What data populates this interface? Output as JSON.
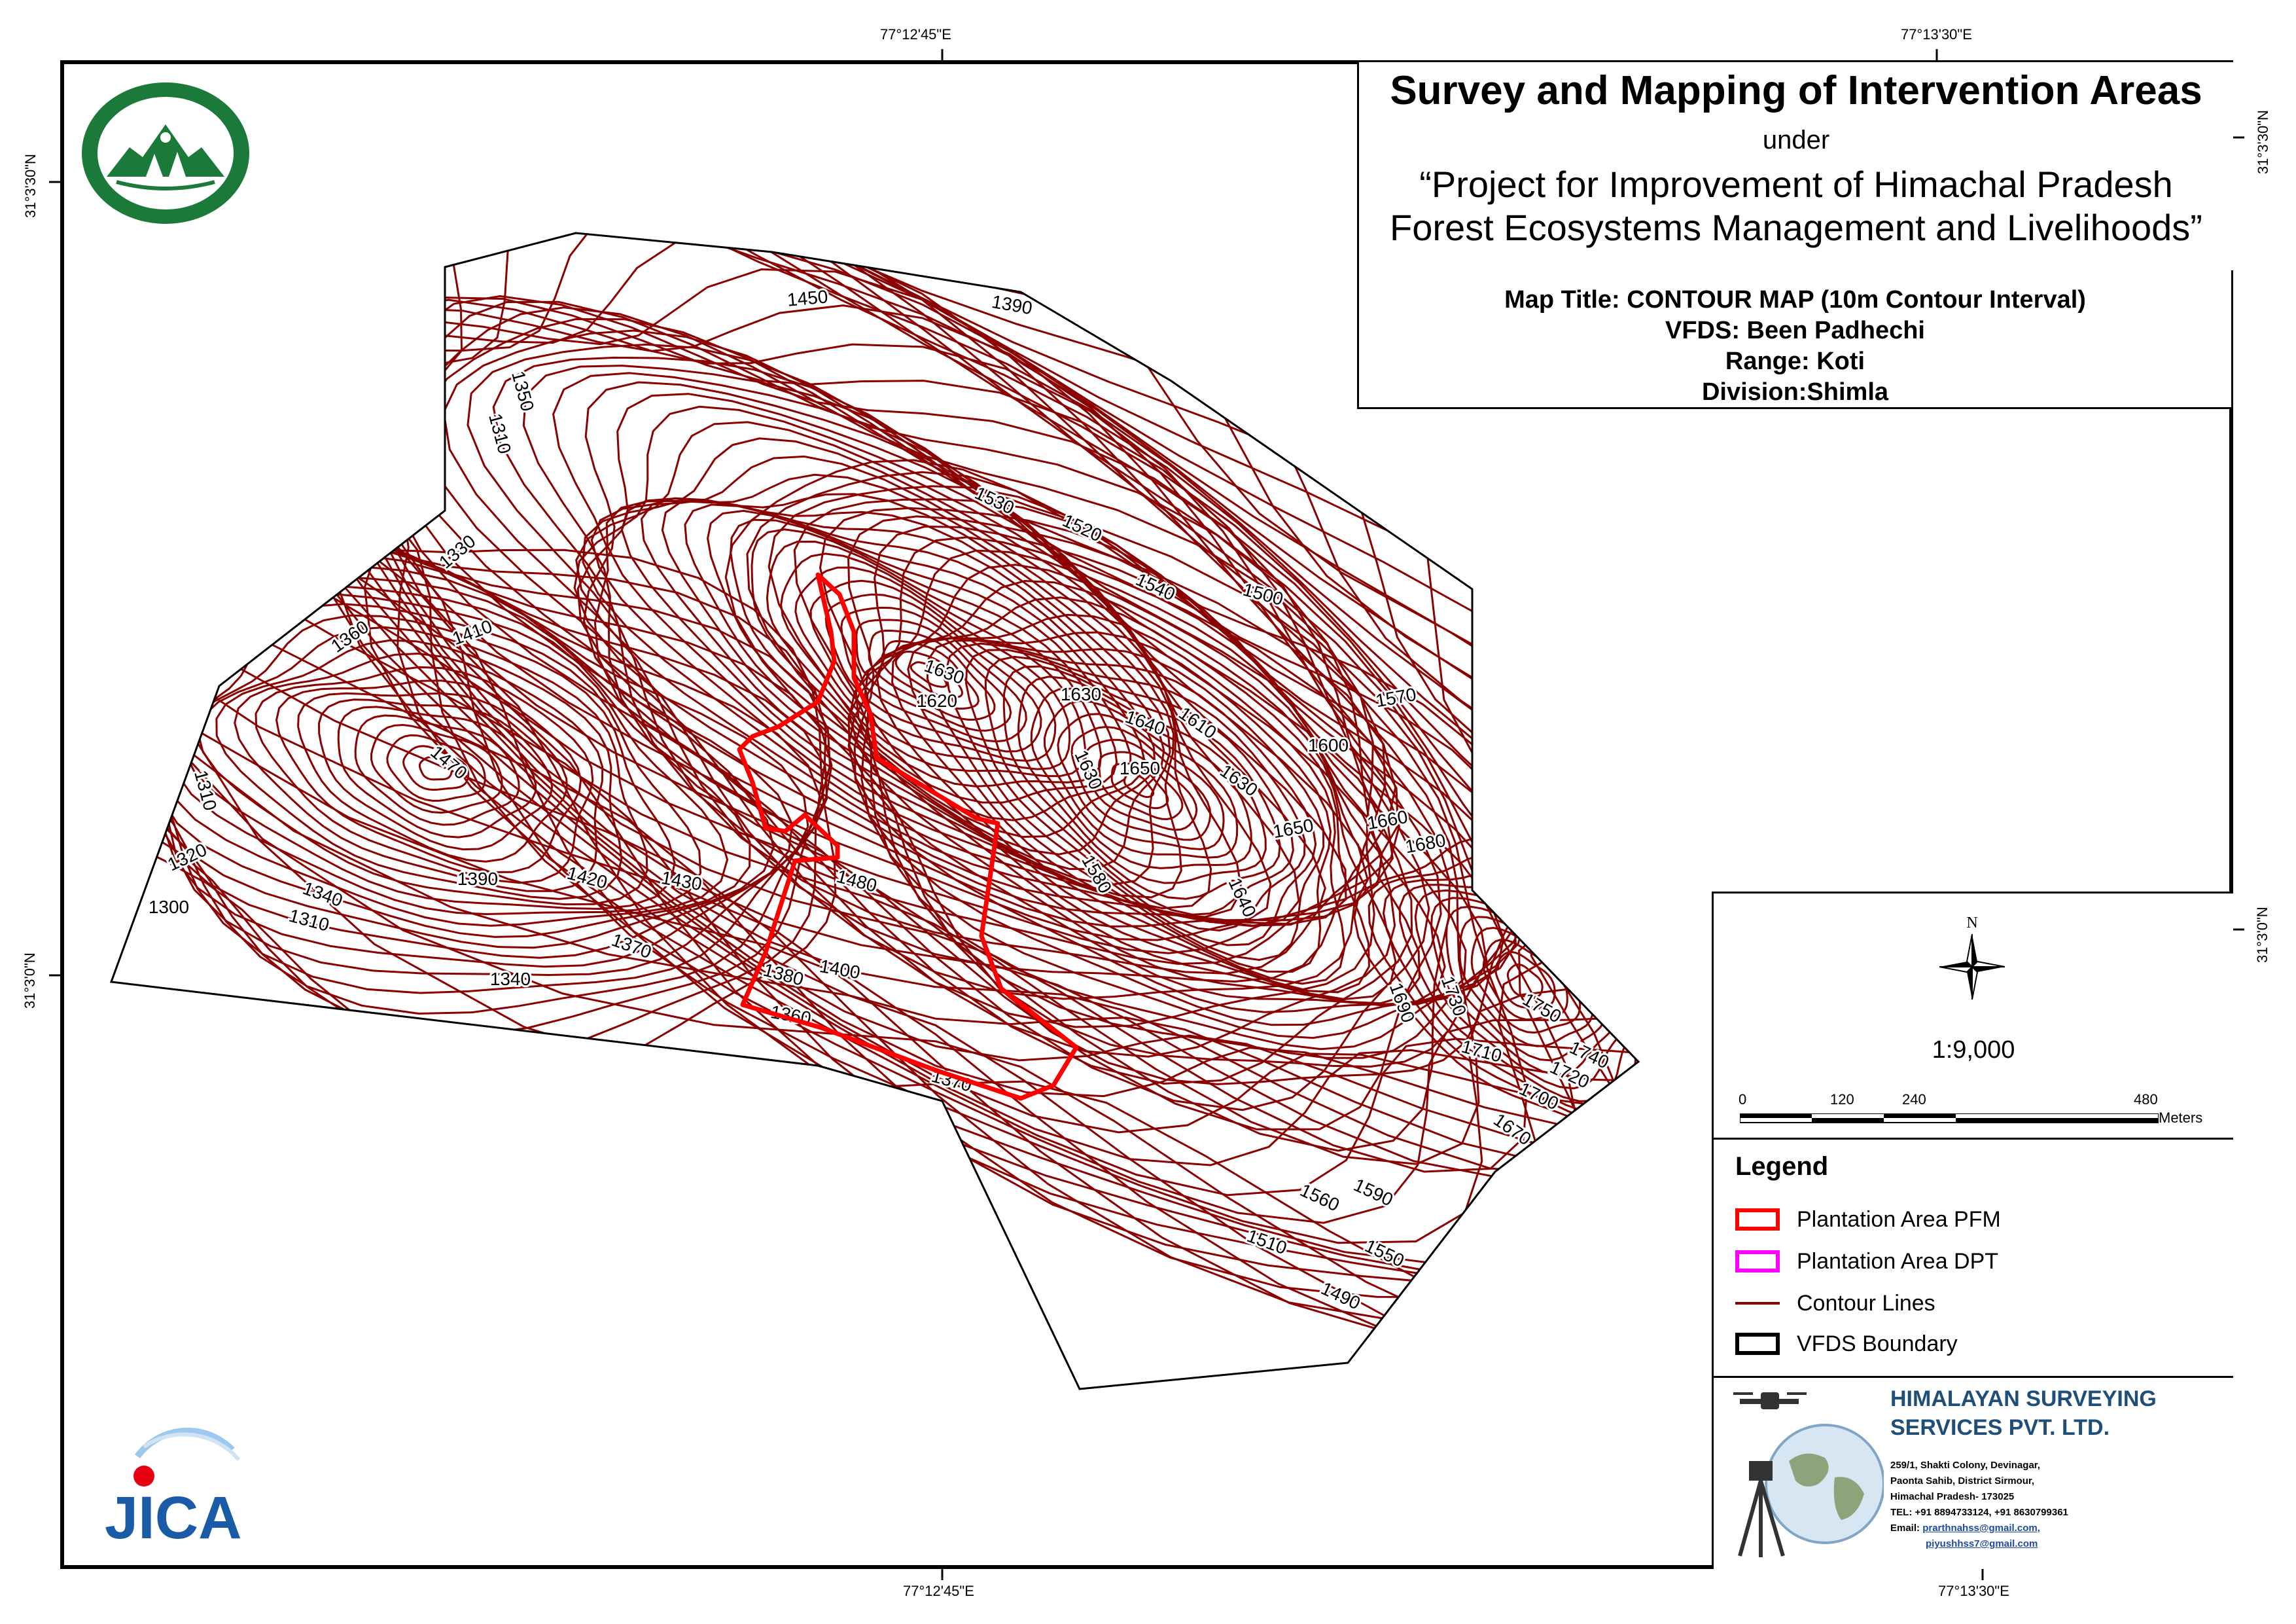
{
  "title": {
    "main": "Survey and Mapping of Intervention Areas",
    "under": "under",
    "project_line1": "“Project for Improvement of Himachal Pradesh",
    "project_line2": "Forest Ecosystems Management and Livelihoods”"
  },
  "map_info": {
    "map_title": "Map Title: CONTOUR MAP (10m Contour Interval)",
    "vfds": "VFDS: Been Padhechi",
    "range": "Range: Koti",
    "division": "Division:Shimla"
  },
  "graticule": {
    "top_left": "77°12'45\"E",
    "top_right": "77°13'30\"E",
    "bottom_left": "77°12'45\"E",
    "bottom_right": "77°13'30\"E",
    "left_upper": "31°3'30\"N",
    "left_lower": "31°3'0\"N",
    "right_upper": "31°3'30\"N",
    "right_lower": "31°3'0\"N"
  },
  "north_label": "N",
  "scale": {
    "ratio": "1:9,000",
    "ticks": [
      "0",
      "120",
      "240",
      "480"
    ],
    "units": "Meters"
  },
  "legend": {
    "title": "Legend",
    "items": [
      {
        "label": "Plantation Area PFM",
        "color": "#ff0000"
      },
      {
        "label": "Plantation Area DPT",
        "color": "#ff00ff"
      },
      {
        "label": "Contour Lines",
        "color": "#8b0000"
      },
      {
        "label": "VFDS Boundary",
        "color": "#000000"
      }
    ]
  },
  "company": {
    "name_line1": "HIMALAYAN SURVEYING",
    "name_line2": "SERVICES PVT. LTD.",
    "addr1": "259/1, Shakti Colony, Devinagar,",
    "addr2": "Paonta Sahib, District Sirmour,",
    "addr3": "Himachal Pradesh- 173025",
    "tel": "TEL: +91 8894733124, +91 8630799361",
    "email_label": "Email: ",
    "email1": "prarthnahss@gmail.com,",
    "email2": "piyushhss7@gmail.com"
  },
  "logos": {
    "forest_dept": "forest-dept-seal",
    "jica_text": "JICA"
  },
  "contour_labels": [
    "1450",
    "1390",
    "1350",
    "1310",
    "1470",
    "1330",
    "1360",
    "1410",
    "1310",
    "1320",
    "1300",
    "1340",
    "1310",
    "1390",
    "1420",
    "1430",
    "1480",
    "1370",
    "1340",
    "1380",
    "1400",
    "1360",
    "1370",
    "1530",
    "1520",
    "1540",
    "1500",
    "1630",
    "1620",
    "1630",
    "1640",
    "1610",
    "1600",
    "1570",
    "1630",
    "1650",
    "1630",
    "1650",
    "1660",
    "1680",
    "1580",
    "1640",
    "1690",
    "1730",
    "1750",
    "1710",
    "1740",
    "1720",
    "1700",
    "1670",
    "1590",
    "1560",
    "1550",
    "1510",
    "1490"
  ],
  "colors": {
    "contour": "#8b0000",
    "pfm_boundary": "#ff0000",
    "vfds_boundary": "#000000",
    "jica_blue": "#1a5ba8",
    "forest_green": "#1b7a3a"
  }
}
